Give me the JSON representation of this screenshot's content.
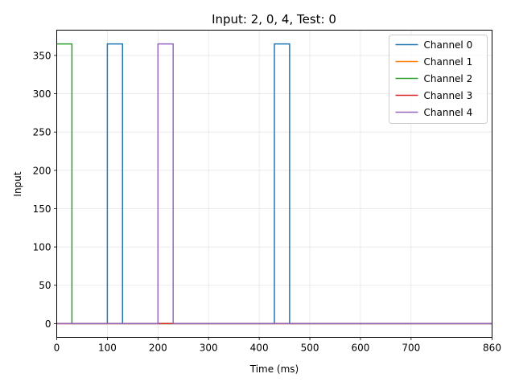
{
  "chart_data": {
    "type": "line",
    "title": "Input: 2, 0, 4, Test: 0",
    "xlabel": "Time (ms)",
    "ylabel": "Input",
    "xlim": [
      0,
      860
    ],
    "ylim": [
      -18,
      383
    ],
    "xticks": [
      0,
      100,
      200,
      300,
      400,
      500,
      600,
      700,
      860
    ],
    "yticks": [
      0,
      50,
      100,
      150,
      200,
      250,
      300,
      350
    ],
    "grid": true,
    "legend_position": "top-right",
    "series": [
      {
        "name": "Channel 0",
        "color": "#1f77b4",
        "x": [
          0,
          100,
          100,
          130,
          130,
          430,
          430,
          460,
          460,
          860
        ],
        "y": [
          0,
          0,
          365,
          365,
          0,
          0,
          365,
          365,
          0,
          0
        ]
      },
      {
        "name": "Channel 1",
        "color": "#ff7f0e",
        "x": [
          0,
          860
        ],
        "y": [
          0,
          0
        ]
      },
      {
        "name": "Channel 2",
        "color": "#2ca02c",
        "x": [
          0,
          30,
          30,
          860
        ],
        "y": [
          365,
          365,
          0,
          0
        ]
      },
      {
        "name": "Channel 3",
        "color": "#d62728",
        "x": [
          0,
          860
        ],
        "y": [
          0,
          0
        ]
      },
      {
        "name": "Channel 4",
        "color": "#9467bd",
        "x": [
          0,
          200,
          200,
          230,
          230,
          860
        ],
        "y": [
          0,
          0,
          365,
          365,
          0,
          0
        ]
      }
    ]
  }
}
